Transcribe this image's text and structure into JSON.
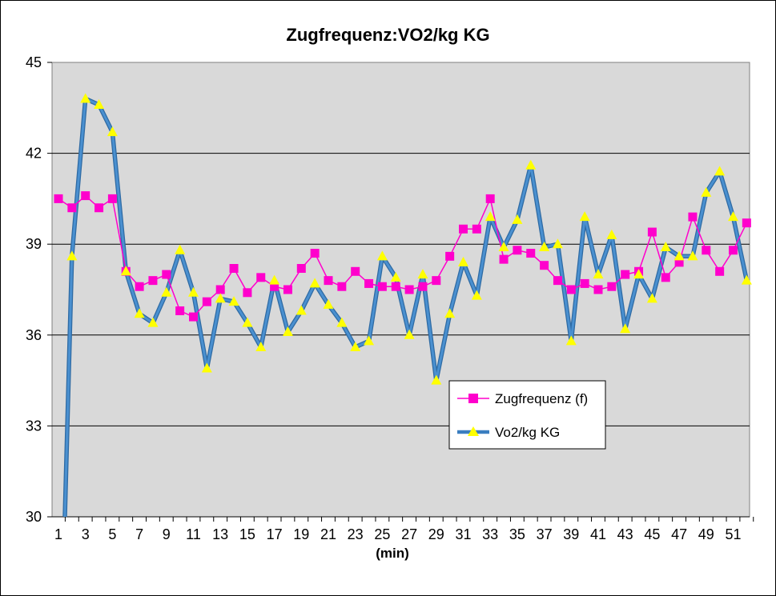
{
  "chart_data": {
    "type": "line",
    "title": "Zugfrequenz:VO2/kg KG",
    "xlabel": "(min)",
    "ylabel": "",
    "ylim": [
      30,
      45
    ],
    "yticks": [
      30,
      33,
      36,
      39,
      42,
      45
    ],
    "xlim": [
      1,
      52
    ],
    "xtick_labels": [
      1,
      3,
      5,
      7,
      9,
      11,
      13,
      15,
      17,
      19,
      21,
      23,
      25,
      27,
      29,
      31,
      33,
      35,
      37,
      39,
      41,
      43,
      45,
      47,
      49,
      51
    ],
    "grid": true,
    "legend_position": "lower-right",
    "colors": {
      "plot_background": "#d9d9d9",
      "zugfrequenz": "#ff00cc",
      "vo2": "#3a7ebf",
      "vo2_marker": "#ffff00"
    },
    "series": [
      {
        "name": "Zugfrequenz (f)",
        "marker": "square",
        "x": [
          1,
          2,
          3,
          4,
          5,
          6,
          7,
          8,
          9,
          10,
          11,
          12,
          13,
          14,
          15,
          16,
          17,
          18,
          19,
          20,
          21,
          22,
          23,
          24,
          25,
          26,
          27,
          28,
          29,
          30,
          31,
          32,
          33,
          34,
          35,
          36,
          37,
          38,
          39,
          40,
          41,
          42,
          43,
          44,
          45,
          46,
          47,
          48,
          49,
          50,
          51,
          52
        ],
        "values": [
          40.5,
          40.2,
          40.6,
          40.2,
          40.5,
          38.1,
          37.6,
          37.8,
          38.0,
          36.8,
          36.6,
          37.1,
          37.5,
          38.2,
          37.4,
          37.9,
          37.6,
          37.5,
          38.2,
          38.7,
          37.8,
          37.6,
          38.1,
          37.7,
          37.6,
          37.6,
          37.5,
          37.6,
          37.8,
          38.6,
          39.5,
          39.5,
          40.5,
          38.5,
          38.8,
          38.7,
          38.3,
          37.8,
          37.5,
          37.7,
          37.5,
          37.6,
          38.0,
          38.1,
          39.4,
          37.9,
          38.4,
          39.9,
          38.8,
          38.1,
          38.8,
          39.7
        ]
      },
      {
        "name": "Vo2/kg KG",
        "marker": "triangle",
        "x": [
          1,
          2,
          3,
          4,
          5,
          6,
          7,
          8,
          9,
          10,
          11,
          12,
          13,
          14,
          15,
          16,
          17,
          18,
          19,
          20,
          21,
          22,
          23,
          24,
          25,
          26,
          27,
          28,
          29,
          30,
          31,
          32,
          33,
          34,
          35,
          36,
          37,
          38,
          39,
          40,
          41,
          42,
          43,
          44,
          45,
          46,
          47,
          48,
          49,
          50,
          51,
          52
        ],
        "values": [
          null,
          38.6,
          43.8,
          43.6,
          42.7,
          38.1,
          36.7,
          36.4,
          37.4,
          38.8,
          37.4,
          34.9,
          37.2,
          37.1,
          36.4,
          35.6,
          37.8,
          36.1,
          36.8,
          37.7,
          37.0,
          36.4,
          35.6,
          35.8,
          38.6,
          37.9,
          36.0,
          38.0,
          34.5,
          36.7,
          38.4,
          37.3,
          39.9,
          38.9,
          39.8,
          41.6,
          38.9,
          39.0,
          35.8,
          39.9,
          38.0,
          39.3,
          36.2,
          38.0,
          37.2,
          38.9,
          38.6,
          38.6,
          40.7,
          41.4,
          39.9,
          37.8
        ],
        "leading_drop_to": 30
      }
    ]
  }
}
